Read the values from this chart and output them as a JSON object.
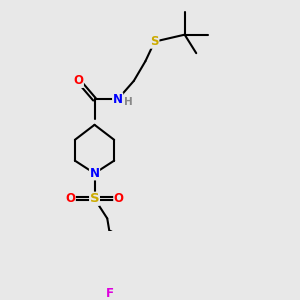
{
  "background_color": "#e8e8e8",
  "fig_size": [
    3.0,
    3.0
  ],
  "dpi": 100,
  "line_color": "#000000",
  "bond_width": 1.5,
  "atom_colors": {
    "N": "#0000ff",
    "O": "#ff0000",
    "S_thio": "#ccaa00",
    "S_sulfonyl": "#ccaa00",
    "F": "#dd00dd",
    "H": "#888888"
  },
  "font_size": 8.5,
  "font_size_small": 7.5,
  "xlim": [
    0,
    10
  ],
  "ylim": [
    0,
    10
  ]
}
